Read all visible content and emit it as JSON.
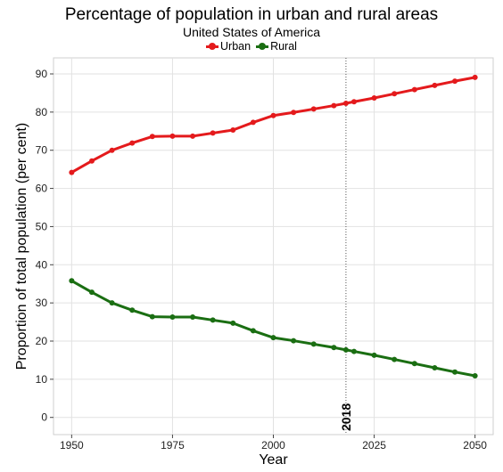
{
  "chart_data": {
    "type": "line",
    "title": "Percentage of population in urban and rural areas",
    "subtitle": "United States of America",
    "xlabel": "Year",
    "ylabel": "Proportion of total population (per cent)",
    "xlim": [
      1950,
      2050
    ],
    "ylim": [
      0,
      90
    ],
    "xticks": [
      1950,
      1975,
      2000,
      2025,
      2050
    ],
    "yticks": [
      0,
      10,
      20,
      30,
      40,
      50,
      60,
      70,
      80,
      90
    ],
    "grid": true,
    "legend_position": "top-center",
    "reference_line": {
      "x": 2018,
      "label": "2018"
    },
    "x": [
      1950,
      1955,
      1960,
      1965,
      1970,
      1975,
      1980,
      1985,
      1990,
      1995,
      2000,
      2005,
      2010,
      2015,
      2018,
      2020,
      2025,
      2030,
      2035,
      2040,
      2045,
      2050
    ],
    "series": [
      {
        "name": "Urban",
        "color": "#e41a1c",
        "values": [
          64.2,
          67.2,
          70.0,
          71.9,
          73.6,
          73.7,
          73.7,
          74.5,
          75.3,
          77.3,
          79.1,
          79.9,
          80.8,
          81.7,
          82.3,
          82.7,
          83.7,
          84.8,
          85.9,
          87.0,
          88.1,
          89.1
        ]
      },
      {
        "name": "Rural",
        "color": "#1a6e12",
        "values": [
          35.8,
          32.8,
          30.0,
          28.1,
          26.4,
          26.3,
          26.3,
          25.5,
          24.7,
          22.7,
          20.9,
          20.1,
          19.2,
          18.3,
          17.7,
          17.3,
          16.3,
          15.2,
          14.1,
          13.0,
          11.9,
          10.9
        ]
      }
    ]
  }
}
